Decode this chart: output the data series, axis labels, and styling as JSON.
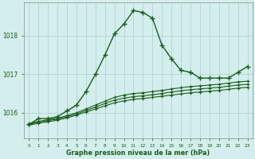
{
  "hours": [
    0,
    1,
    2,
    3,
    4,
    5,
    6,
    7,
    8,
    9,
    10,
    11,
    12,
    13,
    14,
    15,
    16,
    17,
    18,
    19,
    20,
    21,
    22,
    23
  ],
  "line_main": [
    1015.7,
    1015.85,
    1015.85,
    1015.9,
    1016.05,
    1016.2,
    1016.55,
    1017.0,
    1017.5,
    1018.05,
    1018.3,
    1018.65,
    1018.6,
    1018.45,
    1017.75,
    1017.4,
    1017.1,
    1017.05,
    1016.9,
    1016.9,
    1016.9,
    1016.9,
    1017.05,
    1017.2
  ],
  "line2": [
    1015.72,
    1015.78,
    1015.82,
    1015.86,
    1015.93,
    1016.0,
    1016.1,
    1016.2,
    1016.3,
    1016.4,
    1016.46,
    1016.5,
    1016.52,
    1016.55,
    1016.58,
    1016.62,
    1016.65,
    1016.68,
    1016.7,
    1016.72,
    1016.74,
    1016.77,
    1016.8,
    1016.82
  ],
  "line3": [
    1015.7,
    1015.76,
    1015.8,
    1015.84,
    1015.9,
    1015.97,
    1016.06,
    1016.15,
    1016.24,
    1016.33,
    1016.38,
    1016.42,
    1016.44,
    1016.47,
    1016.5,
    1016.54,
    1016.57,
    1016.6,
    1016.62,
    1016.64,
    1016.66,
    1016.69,
    1016.72,
    1016.74
  ],
  "line4": [
    1015.68,
    1015.73,
    1015.77,
    1015.81,
    1015.87,
    1015.94,
    1016.02,
    1016.1,
    1016.18,
    1016.26,
    1016.31,
    1016.35,
    1016.37,
    1016.4,
    1016.43,
    1016.46,
    1016.49,
    1016.52,
    1016.54,
    1016.56,
    1016.58,
    1016.61,
    1016.64,
    1016.66
  ],
  "line_color": "#1a5c1a",
  "bg_color": "#d4eeed",
  "grid_color": "#aacfcf",
  "ylabel_ticks": [
    1016,
    1017,
    1018
  ],
  "ylim": [
    1015.35,
    1018.85
  ],
  "xlim": [
    -0.5,
    23.5
  ],
  "xlabel": "Graphe pression niveau de la mer (hPa)"
}
